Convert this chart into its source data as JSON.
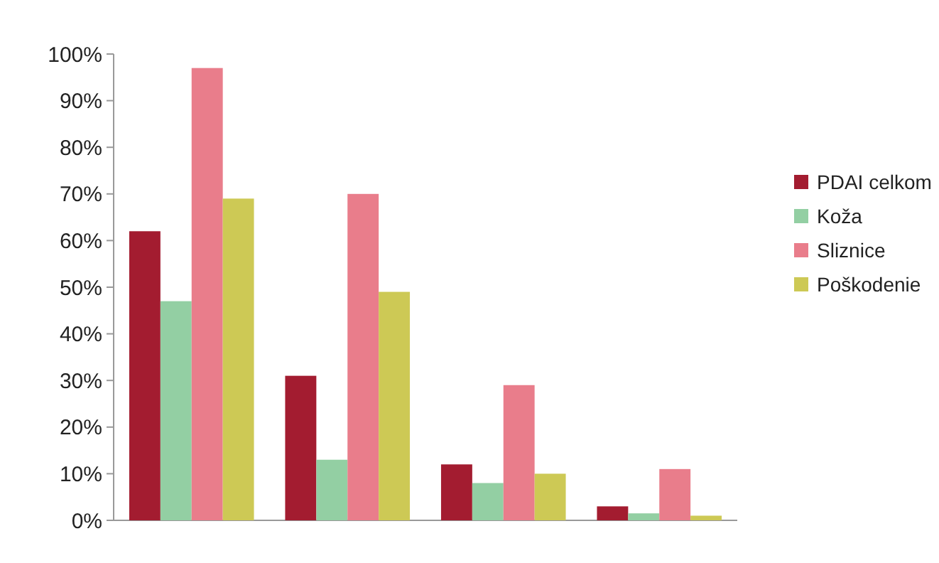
{
  "chart_data": {
    "type": "bar",
    "categories": [
      null,
      null,
      null,
      null
    ],
    "series": [
      {
        "name": "PDAI celkom",
        "color": "#a31c30",
        "values": [
          62,
          31,
          12,
          3
        ]
      },
      {
        "name": "Koža",
        "color": "#93cfa3",
        "values": [
          47,
          13,
          8,
          1.5
        ]
      },
      {
        "name": "Sliznice",
        "color": "#e97d8b",
        "values": [
          97,
          70,
          29,
          11
        ]
      },
      {
        "name": "Poškodenie",
        "color": "#cdc955",
        "values": [
          69,
          49,
          10,
          1
        ]
      }
    ],
    "ylim": [
      0,
      100
    ],
    "yticks": [
      {
        "value": 0,
        "label": "0%"
      },
      {
        "value": 10,
        "label": "10%"
      },
      {
        "value": 20,
        "label": "20%"
      },
      {
        "value": 30,
        "label": "30%"
      },
      {
        "value": 40,
        "label": "40%"
      },
      {
        "value": 50,
        "label": "50%"
      },
      {
        "value": 60,
        "label": "60%"
      },
      {
        "value": 70,
        "label": "70%"
      },
      {
        "value": 80,
        "label": "80%"
      },
      {
        "value": 90,
        "label": "90%"
      },
      {
        "value": 100,
        "label": "100%"
      }
    ],
    "grid": false,
    "legend": "right"
  }
}
